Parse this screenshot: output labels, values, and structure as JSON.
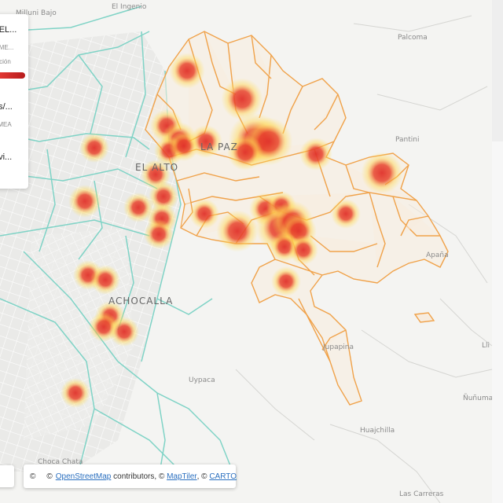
{
  "places": {
    "milluni_bajo": "Milluni Bajo",
    "el_ingenio": "El Ingenio",
    "palcoma": "Palcoma",
    "la_paz": "LA PAZ",
    "el_alto": "EL ALTO",
    "pantini": "Pantini",
    "achocalla": "ACHOCALLA",
    "apana": "Apaña",
    "jupapina": "Jupapina",
    "uypaca": "Uypaca",
    "nunumani": "Ñuñuma",
    "huajchilla": "Huajchilla",
    "choca_chata": "Choca Chata",
    "las_carreras": "Las Carreras",
    "lli": "Lli"
  },
  "panel": {
    "title": "- EL...",
    "subtitle": "3 ME...",
    "legend_label": "ración",
    "link1": "es/...",
    "link1_sub": "AMEA",
    "link2": "ovi..."
  },
  "attribution": {
    "copyright": "©",
    "osm": "OpenStreetMap",
    "contributors": " contributors, © ",
    "maptiler": "MapTiler",
    "sep": ", © ",
    "carto": "CARTO"
  },
  "colors": {
    "background": "#f4f4f2",
    "district_border": "#f0a24a",
    "district_fill": "#f7ecdf",
    "cyan_border": "#7fd3c6",
    "heat_core": "#e0312a",
    "heat_glow": "#ffe35a"
  }
}
